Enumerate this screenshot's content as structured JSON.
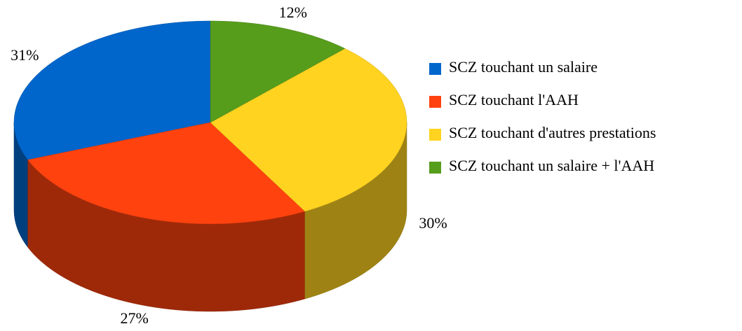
{
  "chart_data": {
    "type": "pie3d",
    "categories": [
      "SCZ touchant un salaire",
      "SCZ touchant l'AAH",
      "SCZ touchant d'autres prestations",
      "SCZ touchant un salaire + l'AAH"
    ],
    "values": [
      31,
      27,
      30,
      12
    ],
    "value_labels": [
      "31%",
      "27%",
      "30%",
      "12%"
    ],
    "colors": [
      "#0066cc",
      "#ff420e",
      "#ffd320",
      "#579d1c"
    ],
    "legend": "right"
  }
}
